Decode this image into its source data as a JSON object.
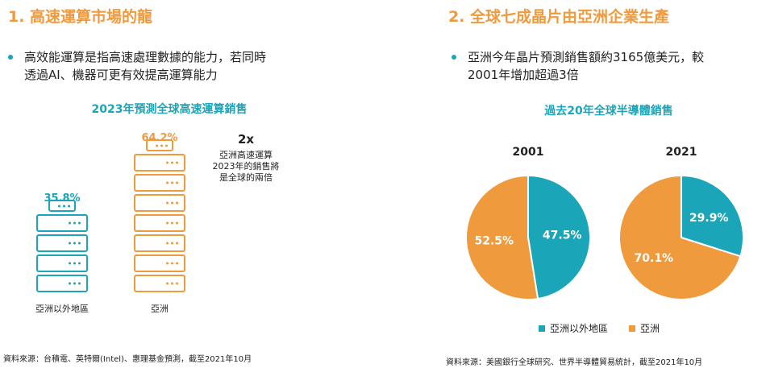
{
  "colors": {
    "asia": "#f09a3e",
    "outside": "#1ba5b8",
    "title": "#f09a3e",
    "accent": "#1ba5b8"
  },
  "left": {
    "heading": "1. 高速運算市場的龍",
    "bullet_line1": "高效能運算是指高速處理數據的能力，若同時",
    "bullet_line2": "透過AI、機器可更有效提高運算能力",
    "chart_title": "2023年預測全球高速運算銷售",
    "note_big": "2x",
    "note_lines": [
      "亞洲高速運算",
      "2023年的銷售將",
      "是全球的兩倍"
    ],
    "source": "資料來源：台積電、英特爾(Intel)、惠理基金預測，截至2021年10月"
  },
  "right": {
    "heading": "2. 全球七成晶片由亞洲企業生產",
    "bullet_line1": "亞洲今年晶片預測銷售額約3165億美元，較",
    "bullet_line2": "2001年增加超過3倍",
    "chart_title": "過去20年全球半導體銷售",
    "legend": [
      "亞洲以外地區",
      "亞洲"
    ],
    "source": "資料來源：美國銀行全球研究、世界半導體貿易統計，截至2021年10月"
  },
  "chart_data": [
    {
      "type": "bar",
      "title": "2023年預測全球高速運算銷售",
      "categories": [
        "亞洲以外地區",
        "亞洲"
      ],
      "values": [
        35.8,
        64.2
      ],
      "value_labels": [
        "35.8%",
        "64.2%"
      ],
      "unit": "%"
    },
    {
      "type": "pie",
      "title": "2001",
      "labels": [
        "亞洲以外地區",
        "亞洲"
      ],
      "values": [
        47.5,
        52.5
      ],
      "value_labels": [
        "47.5%",
        "52.5%"
      ]
    },
    {
      "type": "pie",
      "title": "2021",
      "labels": [
        "亞洲以外地區",
        "亞洲"
      ],
      "values": [
        29.9,
        70.1
      ],
      "value_labels": [
        "29.9%",
        "70.1%"
      ]
    }
  ]
}
